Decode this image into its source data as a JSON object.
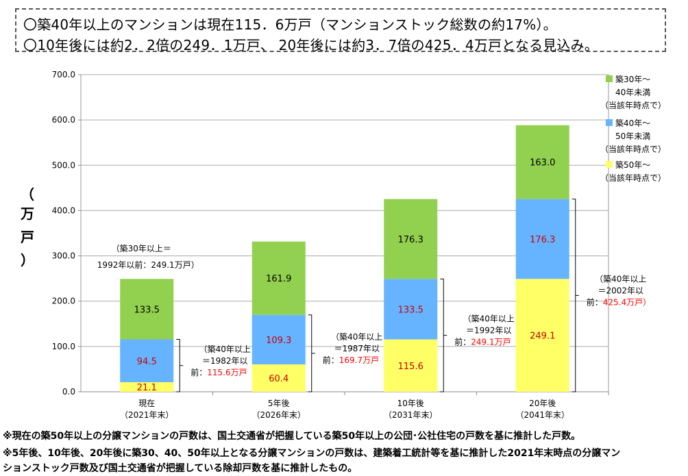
{
  "headline": {
    "line1": "〇築40年以上のマンションは現在115．6万戸（マンションストック総数の約17%）。",
    "line2": "〇10年後には約2．2倍の249．1万戸、 20年後には約3．7倍の425．4万戸となる見込み。"
  },
  "notes": {
    "line1": "※現在の築50年以上の分譲マンションの戸数は、国土交通省が把握している築50年以上の公団･公社住宅の戸数を基に推計した戸数。",
    "line2": "※5年後、10年後、20年後に築30、40、50年以上となる分譲マンションの戸数は、建築着工統計等を基に推計した2021年末時点の分譲マン",
    "line3": "ションストック戸数及び国土交通省が把握している除却戸数を基に推計したもの。"
  },
  "chart_data": {
    "type": "bar",
    "stacked": true,
    "ylabel": [
      "（",
      "万",
      "戸",
      "）"
    ],
    "ylim": [
      0,
      700
    ],
    "yticks": [
      "0.0",
      "100.0",
      "200.0",
      "300.0",
      "400.0",
      "500.0",
      "600.0",
      "700.0"
    ],
    "categories": [
      {
        "line1": "現在",
        "line2": "（2021年末）"
      },
      {
        "line1": "5年後",
        "line2": "（2026年末）"
      },
      {
        "line1": "10年後",
        "line2": "（2031年末）"
      },
      {
        "line1": "20年後",
        "line2": "（2041年末）"
      }
    ],
    "series": [
      {
        "name_lines": [
          "築50年～",
          "（当該年時点で）"
        ],
        "color": "#FFFF66",
        "label_color": "#CC0000",
        "values": [
          21.1,
          60.4,
          115.6,
          249.1
        ],
        "labels": [
          "21.1",
          "60.4",
          "115.6",
          "249.1"
        ]
      },
      {
        "name_lines": [
          "築40年～",
          "50年未満",
          "（当該年時点で）"
        ],
        "color": "#66B3FF",
        "label_color": "#CC0000",
        "values": [
          94.5,
          109.3,
          133.5,
          176.3
        ],
        "labels": [
          "94.5",
          "109.3",
          "133.5",
          "176.3"
        ]
      },
      {
        "name_lines": [
          "築30年～",
          "40年未満",
          "（当該年時点で）"
        ],
        "color": "#92D050",
        "label_color": "#000000",
        "values": [
          133.5,
          161.9,
          176.3,
          163.0
        ],
        "labels": [
          "133.5",
          "161.9",
          "176.3",
          "163.0"
        ]
      }
    ],
    "bracket_annotations": [
      {
        "line1": "（築40年以上",
        "line2": "＝1982年以",
        "prefix": "前：",
        "value": "115.6万戸"
      },
      {
        "line1": "（築40年以上",
        "line2": "＝1987年以",
        "prefix": "前：",
        "value": "169.7万戸"
      },
      {
        "line1": "（築40年以上",
        "line2": "＝1992年以",
        "prefix": "前：",
        "value": "249.1万戸"
      },
      {
        "line1": "（築40年以上",
        "line2": "＝2002年以",
        "prefix": "前：",
        "value": "425.4万戸）"
      }
    ],
    "top_annotation": {
      "line1": "（築30年以上＝",
      "line2": "1992年以前：249.1万戸）"
    },
    "grid": true,
    "legend_position": "top-right",
    "annotation_color": "#FF0000"
  }
}
